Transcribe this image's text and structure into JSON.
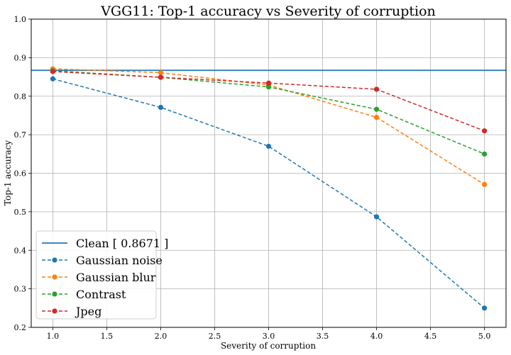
{
  "chart_data": {
    "type": "line",
    "title": "VGG11:  Top-1 accuracy vs Severity of corruption",
    "xlabel": "Severity of corruption",
    "ylabel": "Top-1 accuracy",
    "xlim": [
      0.8,
      5.2
    ],
    "ylim": [
      0.2,
      1.0
    ],
    "x_ticks": [
      "1.0",
      "1.5",
      "2.0",
      "2.5",
      "3.0",
      "3.5",
      "4.0",
      "4.5",
      "5.0"
    ],
    "y_ticks": [
      "0.2",
      "0.3",
      "0.4",
      "0.5",
      "0.6",
      "0.7",
      "0.8",
      "0.9",
      "1.0"
    ],
    "grid": true,
    "legend_position": "lower-left",
    "baseline": {
      "name": "Clean [ 0.8671 ]",
      "value": 0.8671,
      "color": "#1f77b4"
    },
    "x": [
      1,
      2,
      3,
      4,
      5
    ],
    "series": [
      {
        "name": "Gaussian noise",
        "color": "#1f77b4",
        "values": [
          0.845,
          0.771,
          0.67,
          0.487,
          0.25
        ]
      },
      {
        "name": "Gaussian blur",
        "color": "#ff7f0e",
        "values": [
          0.871,
          0.861,
          0.829,
          0.745,
          0.571
        ]
      },
      {
        "name": "Contrast",
        "color": "#2ca02c",
        "values": [
          0.866,
          0.849,
          0.824,
          0.766,
          0.65
        ]
      },
      {
        "name": "Jpeg",
        "color": "#d62728",
        "values": [
          0.864,
          0.849,
          0.834,
          0.818,
          0.71
        ]
      }
    ]
  }
}
